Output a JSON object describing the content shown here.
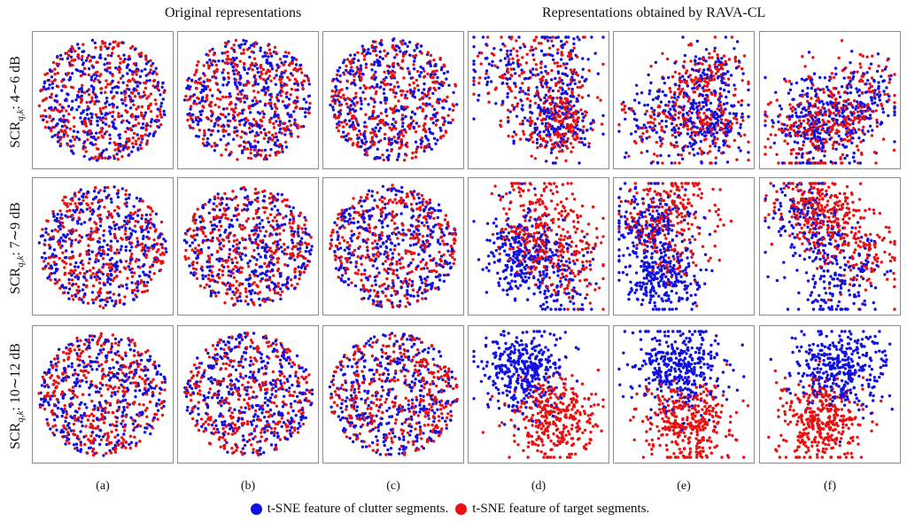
{
  "titles": {
    "left": "Original representations",
    "right": "Representations obtained by RAVA-CL"
  },
  "row_labels": [
    "SCR",
    "SCR",
    "SCR"
  ],
  "row_label_parts": [
    {
      "prefix": "SCR",
      "sub": "q,k",
      "suffix": ": 4∼6 dB"
    },
    {
      "prefix": "SCR",
      "sub": "q,k",
      "suffix": ": 7∼9 dB"
    },
    {
      "prefix": "SCR",
      "sub": "q,k",
      "suffix": ": 10∼12 dB"
    }
  ],
  "column_labels": [
    "(a)",
    "(b)",
    "(c)",
    "(d)",
    "(e)",
    "(f)"
  ],
  "legend": [
    {
      "label": "t-SNE feature of clutter segments.",
      "color": "#1010e0"
    },
    {
      "label": "t-SNE feature of target segments.",
      "color": "#e81010"
    }
  ],
  "chart_data": {
    "type": "scatter",
    "description_kind": "grid of t-SNE scatter panels",
    "rows": 3,
    "columns": 6,
    "series_colors": {
      "clutter": "#1010e0",
      "target": "#e81010"
    },
    "axes": "hidden",
    "grid": false,
    "legend_placement": "bottom-center",
    "panels": [
      {
        "row": 0,
        "col": 0,
        "shape": "disc",
        "separation": "mixed"
      },
      {
        "row": 0,
        "col": 1,
        "shape": "disc",
        "separation": "mixed"
      },
      {
        "row": 0,
        "col": 2,
        "shape": "disc",
        "separation": "mixed"
      },
      {
        "row": 0,
        "col": 3,
        "shape": "blob",
        "separation": "mixed"
      },
      {
        "row": 0,
        "col": 4,
        "shape": "blob",
        "separation": "mixed"
      },
      {
        "row": 0,
        "col": 5,
        "shape": "blob",
        "separation": "mixed"
      },
      {
        "row": 1,
        "col": 0,
        "shape": "disc",
        "separation": "mixed"
      },
      {
        "row": 1,
        "col": 1,
        "shape": "disc",
        "separation": "mixed"
      },
      {
        "row": 1,
        "col": 2,
        "shape": "disc",
        "separation": "mixed"
      },
      {
        "row": 1,
        "col": 3,
        "shape": "blob",
        "separation": "partial"
      },
      {
        "row": 1,
        "col": 4,
        "shape": "blob",
        "separation": "partial"
      },
      {
        "row": 1,
        "col": 5,
        "shape": "blob",
        "separation": "partial"
      },
      {
        "row": 2,
        "col": 0,
        "shape": "disc",
        "separation": "mixed"
      },
      {
        "row": 2,
        "col": 1,
        "shape": "disc",
        "separation": "mixed"
      },
      {
        "row": 2,
        "col": 2,
        "shape": "disc",
        "separation": "mixed"
      },
      {
        "row": 2,
        "col": 3,
        "shape": "split",
        "separation": "separated"
      },
      {
        "row": 2,
        "col": 4,
        "shape": "split",
        "separation": "separated"
      },
      {
        "row": 2,
        "col": 5,
        "shape": "split",
        "separation": "separated"
      }
    ]
  }
}
